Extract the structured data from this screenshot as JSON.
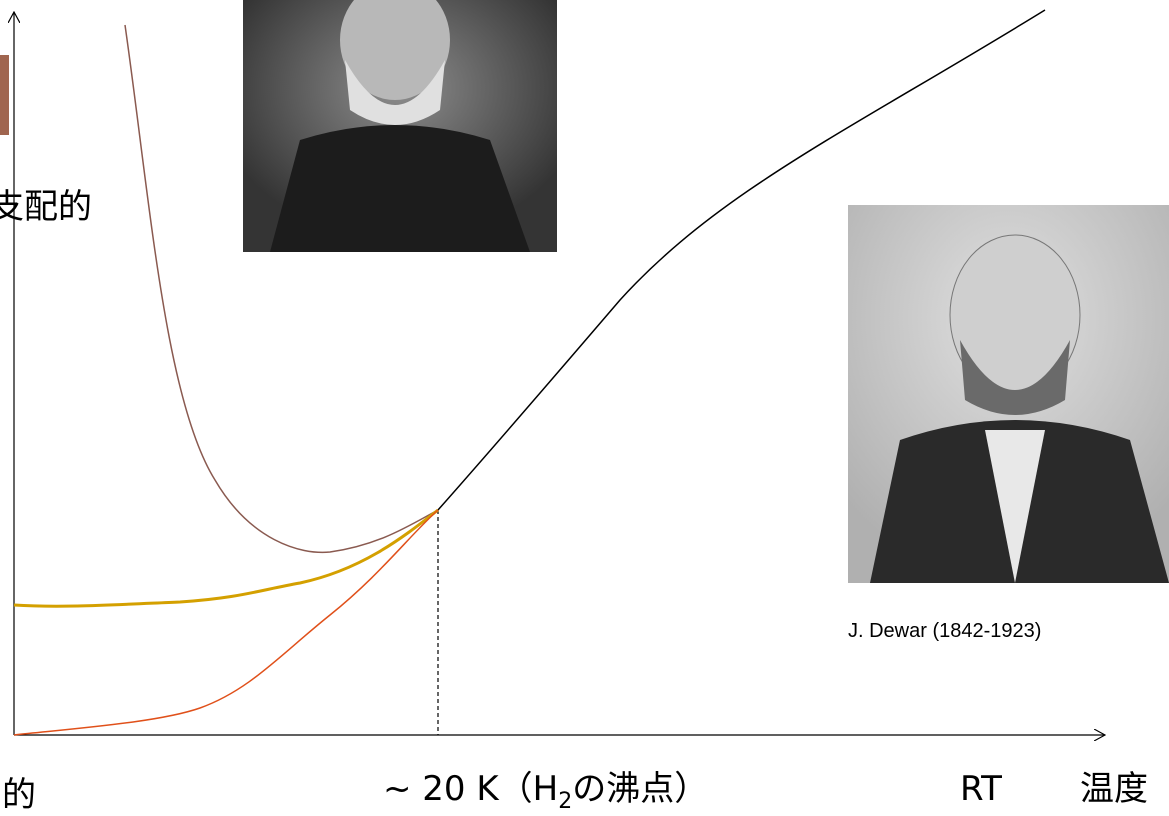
{
  "labels": {
    "dominant_top": "支配的",
    "dominant_bottom": "的",
    "h2_point": {
      "prefix": "~ 20 K（H",
      "subscript": "2",
      "suffix": "の沸点）"
    },
    "room_temperature": "RT",
    "temperature_axis": "温度"
  },
  "photo_caption": "J. Dewar (1842-1923)"
}
